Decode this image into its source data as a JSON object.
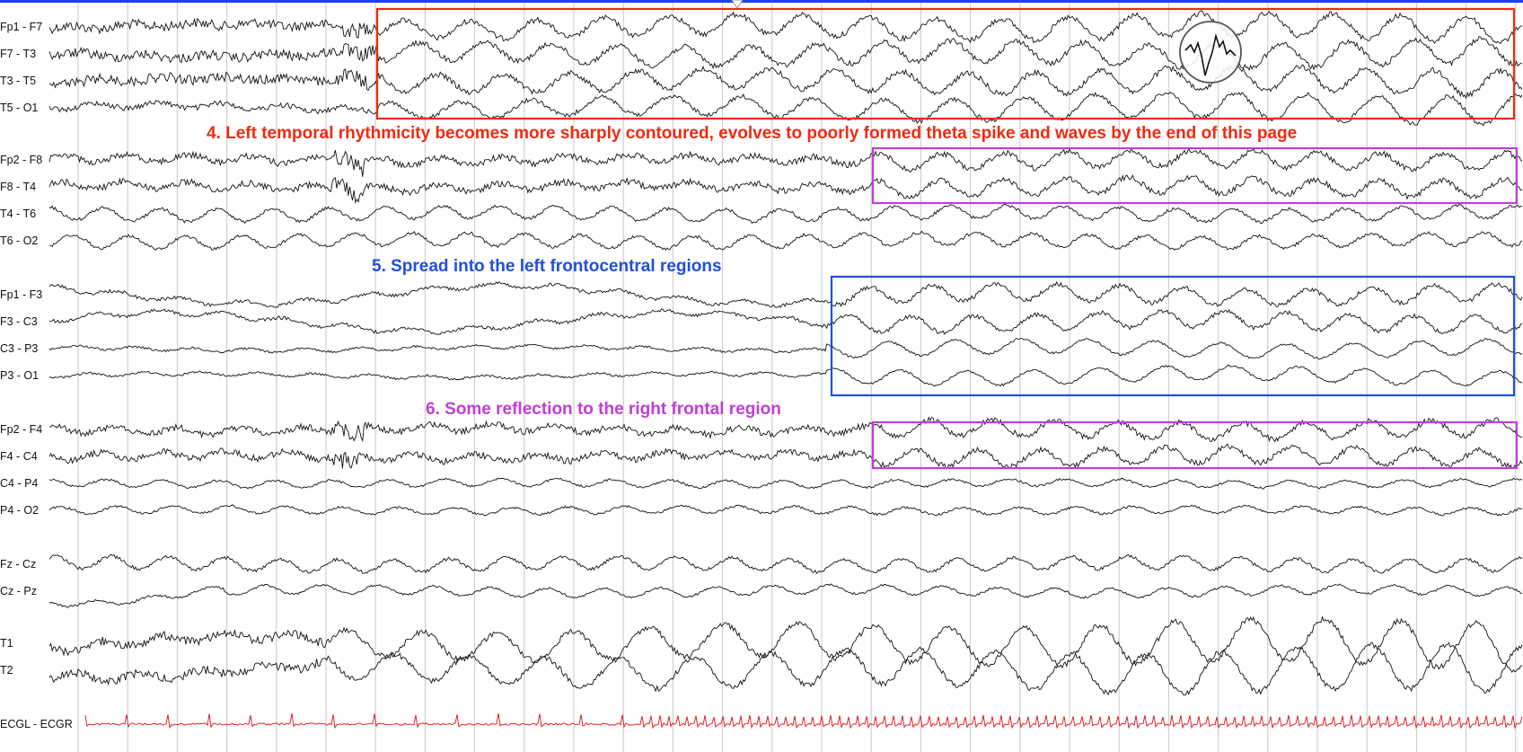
{
  "channels": [
    {
      "label": "Fp1 - F7",
      "group": "left-temporal",
      "pattern": "fast-then-rhythmic"
    },
    {
      "label": "F7 - T3",
      "group": "left-temporal",
      "pattern": "fast-then-rhythmic"
    },
    {
      "label": "T3 - T5",
      "group": "left-temporal",
      "pattern": "fast-then-rhythmic"
    },
    {
      "label": "T5 - O1",
      "group": "left-temporal",
      "pattern": "rhythmic-late"
    },
    {
      "label": "Fp2 - F8",
      "group": "right-temporal",
      "pattern": "fast-artifact"
    },
    {
      "label": "F8 - T4",
      "group": "right-temporal",
      "pattern": "fast-artifact"
    },
    {
      "label": "T4 - T6",
      "group": "right-temporal",
      "pattern": "moderate"
    },
    {
      "label": "T6 - O2",
      "group": "right-temporal",
      "pattern": "moderate"
    },
    {
      "label": "Fp1 - F3",
      "group": "left-parasagittal",
      "pattern": "slow-then-rhythmic"
    },
    {
      "label": "F3 - C3",
      "group": "left-parasagittal",
      "pattern": "slow-then-rhythmic"
    },
    {
      "label": "C3 - P3",
      "group": "left-parasagittal",
      "pattern": "low-then-rhythmic"
    },
    {
      "label": "P3 - O1",
      "group": "left-parasagittal",
      "pattern": "low-then-rhythmic"
    },
    {
      "label": "Fp2 - F4",
      "group": "right-parasagittal",
      "pattern": "fast-artifact"
    },
    {
      "label": "F4 - C4",
      "group": "right-parasagittal",
      "pattern": "fast-artifact"
    },
    {
      "label": "C4 - P4",
      "group": "right-parasagittal",
      "pattern": "low"
    },
    {
      "label": "P4 - O2",
      "group": "right-parasagittal",
      "pattern": "low"
    },
    {
      "label": "Fz - Cz",
      "group": "midline",
      "pattern": "moderate"
    },
    {
      "label": "Cz - Pz",
      "group": "midline",
      "pattern": "slow-start"
    },
    {
      "label": "T1",
      "group": "sphenoidal",
      "pattern": "high-amplitude"
    },
    {
      "label": "T2",
      "group": "sphenoidal",
      "pattern": "high-amplitude"
    },
    {
      "label": "ECGL - ECGR",
      "group": "ecg",
      "pattern": "ecg"
    }
  ],
  "annotations": [
    {
      "id": "note-4",
      "text": "4. Left temporal rhythmicity becomes more sharply contoured, evolves to poorly formed theta spike and waves by the end of this page",
      "color": "#ef2b10"
    },
    {
      "id": "note-5",
      "text": "5. Spread into the left frontocentral regions",
      "color": "#1f4fe0"
    },
    {
      "id": "note-6",
      "text": "6. Some reflection to the right frontal region",
      "color": "#c23dd9"
    }
  ],
  "colors": {
    "trace": "#111111",
    "ecg_trace": "#e01010",
    "gridline": "#c8c8c8",
    "top_bar": "#1f3ff0",
    "box_left_temporal": "#ef2b10",
    "box_right": "#c23dd9",
    "box_left_frontocentral": "#1f4fe0"
  },
  "icons": {
    "zoom_inset": "magnified-spike-wave-lens-icon"
  }
}
